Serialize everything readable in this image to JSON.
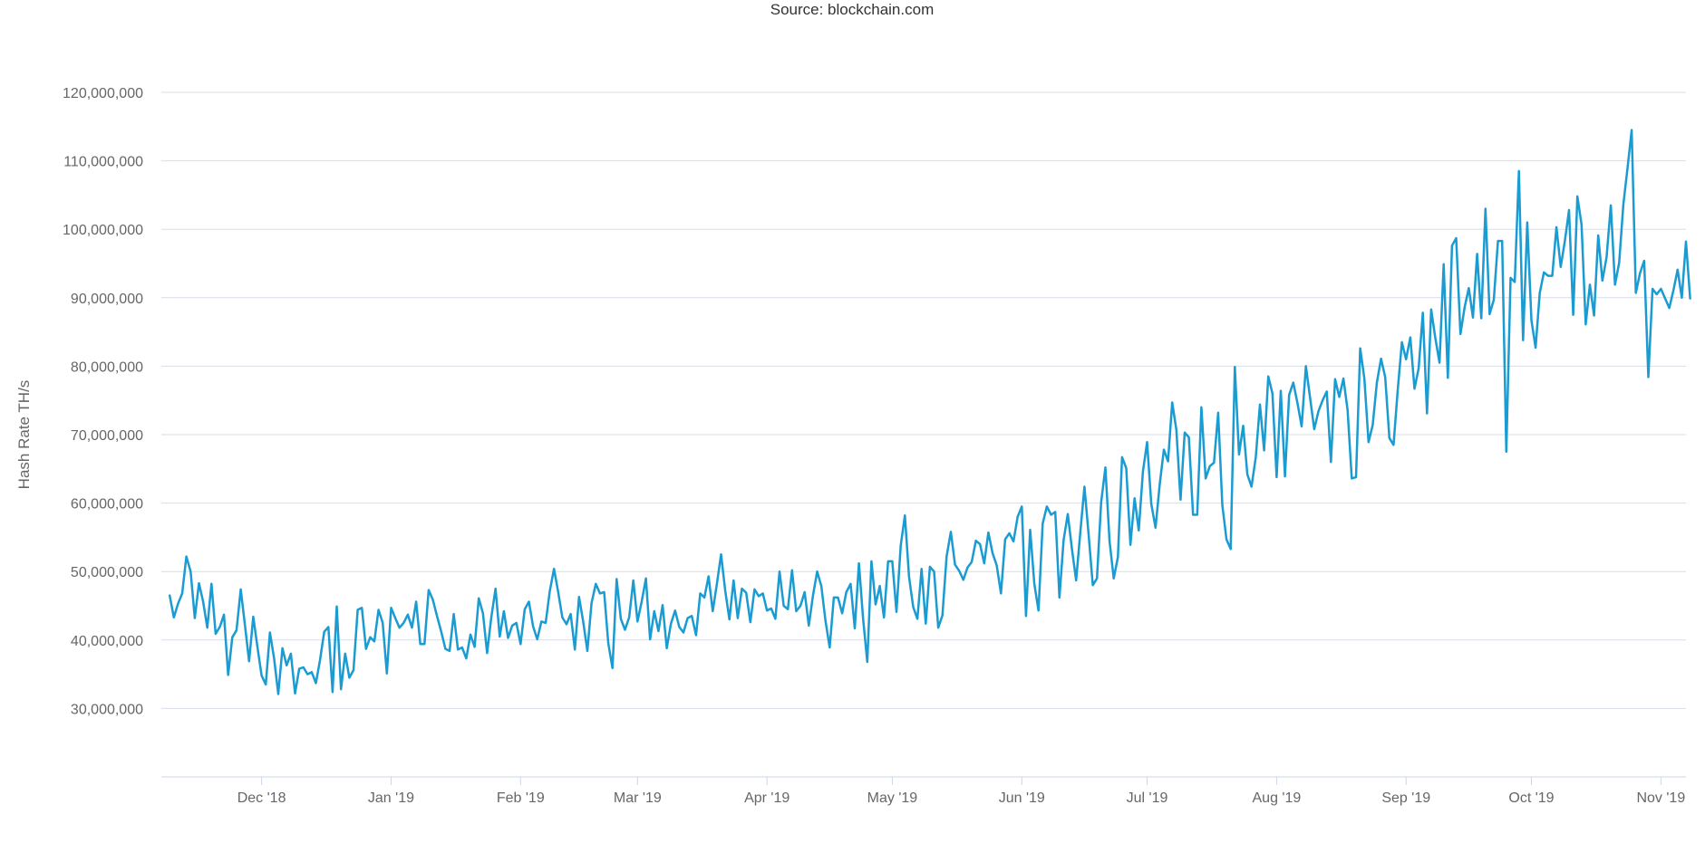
{
  "source": "Source: blockchain.com",
  "chart_data": {
    "type": "line",
    "title": "",
    "subtitle": "Source: blockchain.com",
    "ylabel": "Hash Rate TH/s",
    "xlabel": "",
    "ylim": [
      20000000,
      120000000
    ],
    "xlim": [
      "2018-11-07",
      "2019-11-07"
    ],
    "yticks": [
      30000000,
      40000000,
      50000000,
      60000000,
      70000000,
      80000000,
      90000000,
      100000000,
      110000000,
      120000000
    ],
    "ytick_labels": [
      "30,000,000",
      "40,000,000",
      "50,000,000",
      "60,000,000",
      "70,000,000",
      "80,000,000",
      "90,000,000",
      "100,000,000",
      "110,000,000",
      "120,000,000"
    ],
    "xticks": [
      "2018-12-01",
      "2019-01-01",
      "2019-02-01",
      "2019-03-01",
      "2019-04-01",
      "2019-05-01",
      "2019-06-01",
      "2019-07-01",
      "2019-08-01",
      "2019-09-01",
      "2019-10-01",
      "2019-11-01"
    ],
    "xtick_labels": [
      "Dec '18",
      "Jan '19",
      "Feb '19",
      "Mar '19",
      "Apr '19",
      "May '19",
      "Jun '19",
      "Jul '19",
      "Aug '19",
      "Sep '19",
      "Oct '19",
      "Nov '19"
    ],
    "grid": true,
    "color": "#1a9bd1",
    "series": [
      {
        "x_start": "2018-11-09",
        "x_step_days": 1,
        "values": [
          46500000,
          43300000,
          45300000,
          46800000,
          52200000,
          50000000,
          43200000,
          48300000,
          45600000,
          41800000,
          48200000,
          40900000,
          41900000,
          43700000,
          34900000,
          40400000,
          41400000,
          47400000,
          42200000,
          36900000,
          43400000,
          39000000,
          34800000,
          33500000,
          41100000,
          37300000,
          32100000,
          38800000,
          36300000,
          38000000,
          32200000,
          35800000,
          36000000,
          35000000,
          35300000,
          33700000,
          37100000,
          41200000,
          41900000,
          32400000,
          44900000,
          32800000,
          38000000,
          34500000,
          35600000,
          44400000,
          44700000,
          38700000,
          40400000,
          39800000,
          44400000,
          42500000,
          35100000,
          44700000,
          43200000,
          41800000,
          42500000,
          43700000,
          41800000,
          45600000,
          39400000,
          39400000,
          47300000,
          45900000,
          43500000,
          41200000,
          38700000,
          38400000,
          43800000,
          38600000,
          38900000,
          37300000,
          40800000,
          39000000,
          46100000,
          43900000,
          38100000,
          43300000,
          47500000,
          40500000,
          44200000,
          40300000,
          42100000,
          42500000,
          39400000,
          44500000,
          45600000,
          42000000,
          40100000,
          42700000,
          42500000,
          47200000,
          50400000,
          47000000,
          43300000,
          42300000,
          43800000,
          38600000,
          46300000,
          42700000,
          38400000,
          45400000,
          48200000,
          46800000,
          47000000,
          39500000,
          35900000,
          48900000,
          43100000,
          41500000,
          43300000,
          48700000,
          42700000,
          45600000,
          49000000,
          40100000,
          44200000,
          41300000,
          45100000,
          38800000,
          42400000,
          44300000,
          41900000,
          41100000,
          43200000,
          43500000,
          40700000,
          46800000,
          46200000,
          49300000,
          44200000,
          48200000,
          52500000,
          47200000,
          43000000,
          48700000,
          43200000,
          47500000,
          46900000,
          42600000,
          47400000,
          46400000,
          46800000,
          44300000,
          44600000,
          43100000,
          50000000,
          45000000,
          44500000,
          50200000,
          44200000,
          45000000,
          47000000,
          42100000,
          46500000,
          50000000,
          47900000,
          42800000,
          38900000,
          46200000,
          46200000,
          43900000,
          47000000,
          48200000,
          41700000,
          51200000,
          43100000,
          36800000,
          51500000,
          45200000,
          47900000,
          43300000,
          51500000,
          51500000,
          44100000,
          53800000,
          58200000,
          49200000,
          44800000,
          43100000,
          50400000,
          42400000,
          50700000,
          50000000,
          41800000,
          43600000,
          52200000,
          55800000,
          51000000,
          50100000,
          48800000,
          50600000,
          51400000,
          54500000,
          54000000,
          51200000,
          55700000,
          52700000,
          50900000,
          46800000,
          54700000,
          55600000,
          54400000,
          58000000,
          59500000,
          43500000,
          56100000,
          48200000,
          44300000,
          57000000,
          59500000,
          58300000,
          58700000,
          46200000,
          54600000,
          58400000,
          53300000,
          48700000,
          55700000,
          62400000,
          55400000,
          48000000,
          49000000,
          60100000,
          65200000,
          54400000,
          49000000,
          52100000,
          66700000,
          65100000,
          53900000,
          60700000,
          56000000,
          64600000,
          68900000,
          59900000,
          56400000,
          62700000,
          67800000,
          66100000,
          74700000,
          70700000,
          60500000,
          70300000,
          69600000,
          58300000,
          58300000,
          74000000,
          63600000,
          65400000,
          65900000,
          73200000,
          59700000,
          54700000,
          53300000,
          79900000,
          67100000,
          71300000,
          64200000,
          62400000,
          66700000,
          74400000,
          67700000,
          78500000,
          76000000,
          63800000,
          76400000,
          63900000,
          75800000,
          77600000,
          74600000,
          71200000,
          80000000,
          75400000,
          70800000,
          73400000,
          75000000,
          76300000,
          66000000,
          78100000,
          75500000,
          78200000,
          73600000,
          63600000,
          63800000,
          82600000,
          78200000,
          68900000,
          71400000,
          77600000,
          81100000,
          78400000,
          69500000,
          68500000,
          76500000,
          83500000,
          81000000,
          84200000,
          76700000,
          79700000,
          87800000,
          73100000,
          88300000,
          84100000,
          80500000,
          94900000,
          78300000,
          97600000,
          98700000,
          84700000,
          88600000,
          91400000,
          87100000,
          96400000,
          87000000,
          103000000,
          87600000,
          89700000,
          98300000,
          98300000,
          67500000,
          92900000,
          92300000,
          108500000,
          83800000,
          101000000,
          86700000,
          82700000,
          90700000,
          93700000,
          93200000,
          93200000,
          100300000,
          94500000,
          98300000,
          102800000,
          87500000,
          104800000,
          100700000,
          86100000,
          91900000,
          87400000,
          99100000,
          92500000,
          95900000,
          103500000,
          91900000,
          95100000,
          103600000,
          108900000,
          114500000,
          90700000,
          93600000,
          95400000,
          78400000,
          91300000,
          90500000,
          91300000,
          89900000,
          88500000,
          91100000,
          94100000,
          90000000,
          98200000,
          89900000
        ]
      }
    ]
  }
}
